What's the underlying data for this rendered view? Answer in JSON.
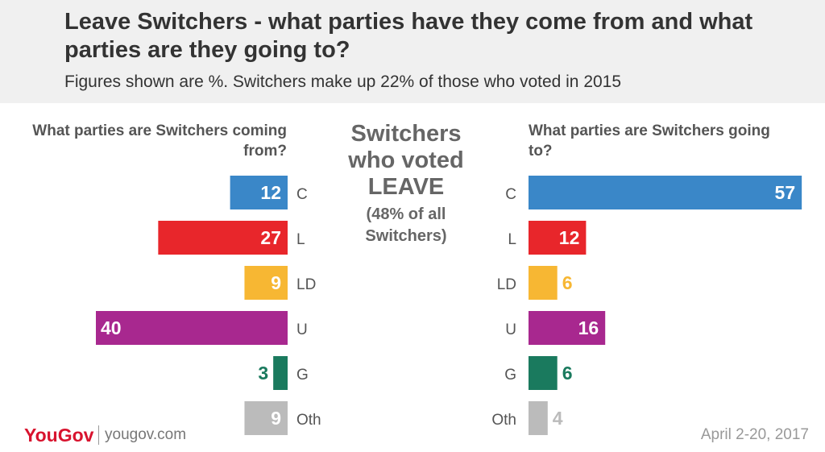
{
  "header": {
    "title": "Leave Switchers - what parties have they come from and what parties are they going to?",
    "subtitle": "Figures shown are %. Switchers make up 22% of those who voted in 2015"
  },
  "center": {
    "line1": "Switchers",
    "line2": "who voted",
    "line3": "LEAVE",
    "line4": "(48% of all",
    "line5": "Switchers)"
  },
  "footer": {
    "brand": "YouGov",
    "url": "yougov.com",
    "date": "April 2-20, 2017"
  },
  "colors": {
    "C": "#3a87c8",
    "L": "#e8262b",
    "LD": "#f7b733",
    "U": "#a8288f",
    "G": "#1a7a5e",
    "Oth": "#bbbbbb"
  },
  "chart_data": [
    {
      "type": "bar",
      "orientation": "horizontal",
      "direction": "right-to-left",
      "title": "What parties are Switchers coming from?",
      "categories": [
        "C",
        "L",
        "LD",
        "U",
        "G",
        "Oth"
      ],
      "values": [
        12,
        27,
        9,
        40,
        3,
        9
      ]
    },
    {
      "type": "bar",
      "orientation": "horizontal",
      "direction": "left-to-right",
      "title": "What parties are Switchers going to?",
      "categories": [
        "C",
        "L",
        "LD",
        "U",
        "G",
        "Oth"
      ],
      "values": [
        57,
        12,
        6,
        16,
        6,
        4
      ]
    }
  ]
}
